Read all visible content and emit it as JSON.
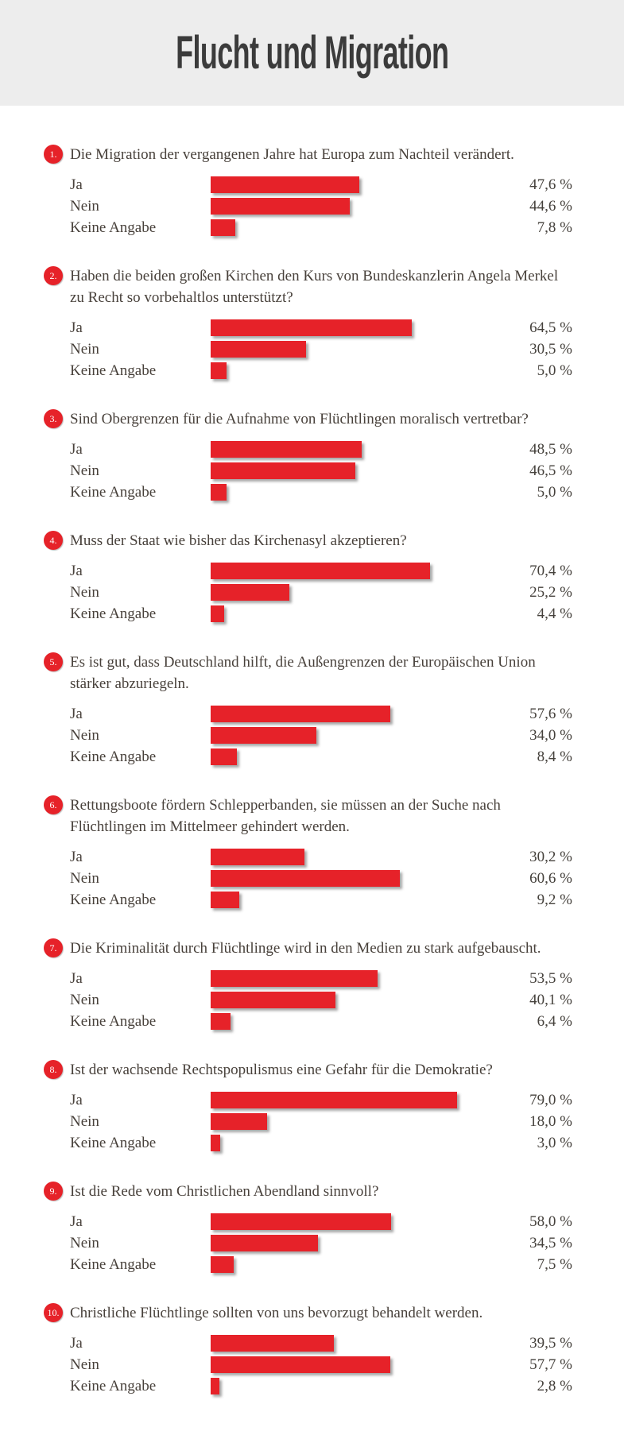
{
  "header": {
    "title": "Flucht und Migration"
  },
  "colors": {
    "accent_red": "#e62229",
    "header_bg": "#ededed",
    "title_text": "#3b3b3b",
    "body_text": "#48413b"
  },
  "chart_data": {
    "type": "bar",
    "orientation": "horizontal",
    "title": "Flucht und Migration",
    "categories": [
      "Ja",
      "Nein",
      "Keine Angabe"
    ],
    "unit": "%",
    "xlim": [
      0,
      100
    ],
    "grid": false,
    "legend": "none",
    "bar_color": "#e62229",
    "questions": [
      {
        "number": "1.",
        "text": "Die Migration der vergangenen Jahre hat Europa zum Nachteil verändert.",
        "values": [
          47.6,
          44.6,
          7.8
        ],
        "displays": [
          "47,6 %",
          "44,6 %",
          "7,8 %"
        ]
      },
      {
        "number": "2.",
        "text": "Haben die beiden großen Kirchen den Kurs von Bundeskanzlerin Angela Merkel zu Recht so vorbehaltlos unterstützt?",
        "values": [
          64.5,
          30.5,
          5.0
        ],
        "displays": [
          "64,5 %",
          "30,5 %",
          "5,0 %"
        ]
      },
      {
        "number": "3.",
        "text": "Sind Obergrenzen für die Aufnahme von Flüchtlingen moralisch vertretbar?",
        "values": [
          48.5,
          46.5,
          5.0
        ],
        "displays": [
          "48,5 %",
          "46,5 %",
          "5,0 %"
        ]
      },
      {
        "number": "4.",
        "text": "Muss der Staat wie bisher das Kirchenasyl akzeptieren?",
        "values": [
          70.4,
          25.2,
          4.4
        ],
        "displays": [
          "70,4 %",
          "25,2 %",
          "4,4 %"
        ]
      },
      {
        "number": "5.",
        "text": "Es ist gut, dass Deutschland hilft, die Außengrenzen der Europäischen Union stärker abzuriegeln.",
        "values": [
          57.6,
          34.0,
          8.4
        ],
        "displays": [
          "57,6 %",
          "34,0 %",
          "8,4 %"
        ]
      },
      {
        "number": "6.",
        "text": "Rettungsboote fördern Schlepperbanden, sie müssen an der Suche nach Flüchtlingen im Mittelmeer gehindert werden.",
        "values": [
          30.2,
          60.6,
          9.2
        ],
        "displays": [
          "30,2 %",
          "60,6 %",
          "9,2 %"
        ]
      },
      {
        "number": "7.",
        "text": "Die Kriminalität durch Flüchtlinge wird in den Medien zu stark aufgebauscht.",
        "values": [
          53.5,
          40.1,
          6.4
        ],
        "displays": [
          "53,5 %",
          "40,1 %",
          "6,4 %"
        ]
      },
      {
        "number": "8.",
        "text": "Ist der wachsende Rechtspopulismus eine Gefahr für die Demokratie?",
        "values": [
          79.0,
          18.0,
          3.0
        ],
        "displays": [
          "79,0 %",
          "18,0 %",
          "3,0 %"
        ]
      },
      {
        "number": "9.",
        "text": "Ist die Rede vom Christlichen Abendland sinnvoll?",
        "values": [
          58.0,
          34.5,
          7.5
        ],
        "displays": [
          "58,0 %",
          "34,5 %",
          "7,5 %"
        ]
      },
      {
        "number": "10.",
        "text": "Christliche Flüchtlinge sollten von uns bevorzugt behandelt werden.",
        "values": [
          39.5,
          57.7,
          2.8
        ],
        "displays": [
          "39,5 %",
          "57,7 %",
          "2,8 %"
        ]
      }
    ]
  }
}
